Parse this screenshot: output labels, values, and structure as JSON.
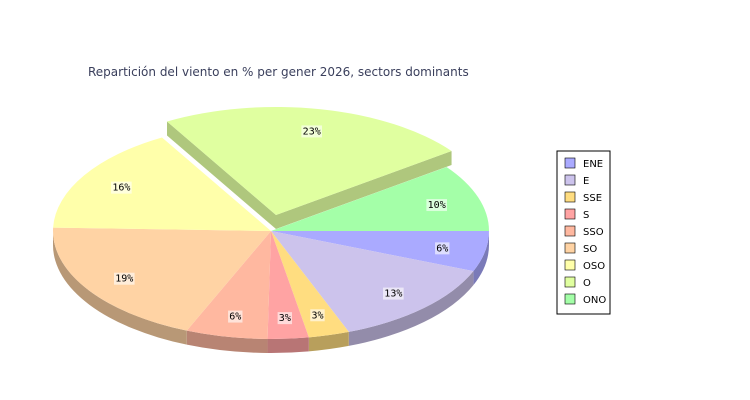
{
  "chart_data": {
    "type": "pie",
    "title": "Repartición del viento en % per gener 2026, sectors dominants",
    "series": [
      {
        "name": "ENE",
        "value": 6,
        "label": "6%",
        "color": "#aaaaff"
      },
      {
        "name": "E",
        "value": 13,
        "label": "13%",
        "color": "#ccc3ec"
      },
      {
        "name": "SSE",
        "value": 3,
        "label": "3%",
        "color": "#ffdd80"
      },
      {
        "name": "S",
        "value": 3,
        "label": "3%",
        "color": "#ffa3a3"
      },
      {
        "name": "SSO",
        "value": 6,
        "label": "6%",
        "color": "#ffb8a0"
      },
      {
        "name": "SO",
        "value": 19,
        "label": "19%",
        "color": "#ffd3a4"
      },
      {
        "name": "OSO",
        "value": 16,
        "label": "16%",
        "color": "#ffffaa"
      },
      {
        "name": "O",
        "value": 23,
        "label": "23%",
        "color": "#e0ffa0",
        "exploded": true
      },
      {
        "name": "ONO",
        "value": 10,
        "label": "10%",
        "color": "#a4ffa8"
      }
    ],
    "legend_position": "right"
  }
}
